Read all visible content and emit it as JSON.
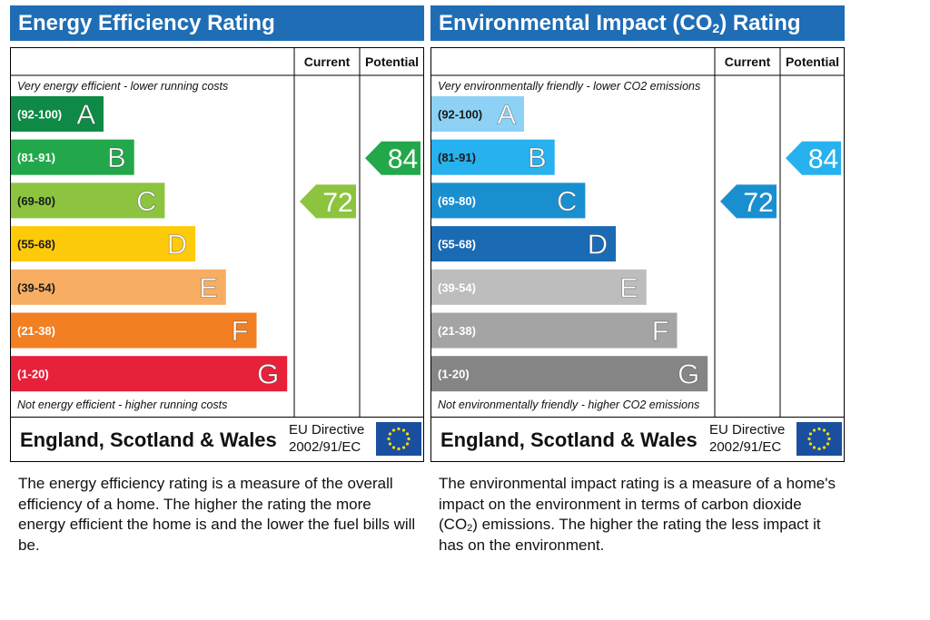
{
  "chart_data": [
    {
      "type": "bar",
      "title": "Energy Efficiency Rating",
      "top_label": "Very energy efficient - lower running costs",
      "bottom_label": "Not energy efficient - higher running costs",
      "columns": [
        "Current",
        "Potential"
      ],
      "bands": [
        {
          "range": "(92-100)",
          "letter": "A",
          "color": "#0f8a46"
        },
        {
          "range": "(81-91)",
          "letter": "B",
          "color": "#22a84a"
        },
        {
          "range": "(69-80)",
          "letter": "C",
          "color": "#8cc43f"
        },
        {
          "range": "(55-68)",
          "letter": "D",
          "color": "#fecb0a"
        },
        {
          "range": "(39-54)",
          "letter": "E",
          "color": "#f8ae62"
        },
        {
          "range": "(21-38)",
          "letter": "F",
          "color": "#f27f22"
        },
        {
          "range": "(1-20)",
          "letter": "G",
          "color": "#e8213a"
        }
      ],
      "current": {
        "value": 72,
        "band": "C",
        "color": "#8cc43f"
      },
      "potential": {
        "value": 84,
        "band": "B",
        "color": "#22a84a"
      }
    },
    {
      "type": "bar",
      "title": "Environmental Impact (CO2) Rating",
      "top_label": "Very environmentally friendly - lower CO2 emissions",
      "bottom_label": "Not environmentally friendly - higher CO2 emissions",
      "columns": [
        "Current",
        "Potential"
      ],
      "bands": [
        {
          "range": "(92-100)",
          "letter": "A",
          "color": "#8dd1f5"
        },
        {
          "range": "(81-91)",
          "letter": "B",
          "color": "#27b1ee"
        },
        {
          "range": "(69-80)",
          "letter": "C",
          "color": "#1a8fd0"
        },
        {
          "range": "(55-68)",
          "letter": "D",
          "color": "#1b6ab4"
        },
        {
          "range": "(39-54)",
          "letter": "E",
          "color": "#bdbdbd"
        },
        {
          "range": "(21-38)",
          "letter": "F",
          "color": "#a4a4a4"
        },
        {
          "range": "(1-20)",
          "letter": "G",
          "color": "#858585"
        }
      ],
      "current": {
        "value": 72,
        "band": "C",
        "color": "#1a8fd0"
      },
      "potential": {
        "value": 84,
        "band": "B",
        "color": "#27b1ee"
      }
    }
  ],
  "energy": {
    "title_text": "Energy Efficiency Rating",
    "country": "England, Scotland & Wales",
    "directive_line1": "EU Directive",
    "directive_line2": "2002/91/EC",
    "description": "The energy efficiency rating is a measure of the overall efficiency of a home. The higher the rating the more energy efficient the home is and the lower the fuel bills will be."
  },
  "environment": {
    "title_main": "Environmental Impact (CO",
    "title_sub": "2",
    "title_end": ") Rating",
    "country": "England, Scotland & Wales",
    "directive_line1": "EU Directive",
    "directive_line2": "2002/91/EC",
    "desc_part1": "The environmental impact rating is a measure of a home's impact on the environment in terms of carbon dioxide (CO",
    "desc_sub": "2",
    "desc_part2": ") emissions. The higher the rating the less impact it has on the environment."
  },
  "theme": {
    "header_blue": "#1f6db5",
    "flag_blue": "#1a4fa0",
    "flag_star": "#ffdd00"
  }
}
